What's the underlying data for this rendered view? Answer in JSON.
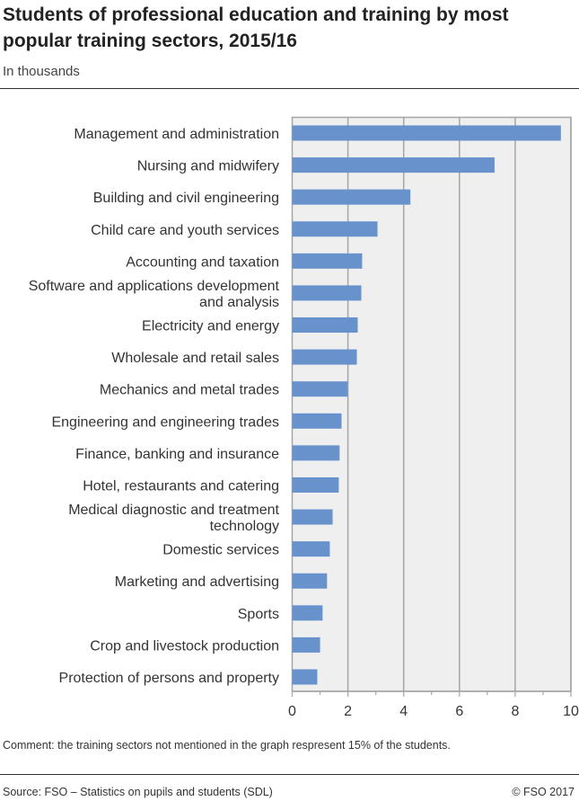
{
  "title": "Students of professional education and training by most popular training sectors, 2015/16",
  "subtitle": "In thousands",
  "comment": "Comment: the training sectors not mentioned in the graph respresent 15% of the students.",
  "source": "Source: FSO – Statistics on pupils and students (SDL)",
  "copyright": "© FSO 2017",
  "chart_data": {
    "type": "bar",
    "orientation": "horizontal",
    "categories": [
      "Management and administration",
      "Nursing and midwifery",
      "Building and civil engineering",
      "Child care and youth services",
      "Accounting and taxation",
      "Software and applications development and analysis",
      "Electricity and energy",
      "Wholesale and retail sales",
      "Mechanics and metal trades",
      "Engineering and engineering trades",
      "Finance, banking and insurance",
      "Hotel, restaurants and catering",
      "Medical diagnostic and treatment technology",
      "Domestic services",
      "Marketing and advertising",
      "Sports",
      "Crop and livestock production",
      "Protection of persons and property"
    ],
    "category_lines": [
      [
        "Management and administration"
      ],
      [
        "Nursing and midwifery"
      ],
      [
        "Building and civil engineering"
      ],
      [
        "Child care and youth services"
      ],
      [
        "Accounting and taxation"
      ],
      [
        "Software and applications development",
        "and analysis"
      ],
      [
        "Electricity and energy"
      ],
      [
        "Wholesale and retail sales"
      ],
      [
        "Mechanics and metal trades"
      ],
      [
        "Engineering and engineering trades"
      ],
      [
        "Finance, banking and insurance"
      ],
      [
        "Hotel, restaurants and catering"
      ],
      [
        "Medical diagnostic and treatment",
        "technology"
      ],
      [
        "Domestic services"
      ],
      [
        "Marketing and advertising"
      ],
      [
        "Sports"
      ],
      [
        "Crop and livestock production"
      ],
      [
        "Protection of persons and property"
      ]
    ],
    "values": [
      9.64,
      7.26,
      4.24,
      3.06,
      2.51,
      2.48,
      2.35,
      2.32,
      1.99,
      1.77,
      1.7,
      1.67,
      1.45,
      1.35,
      1.25,
      1.09,
      1.0,
      0.9
    ],
    "xlim": [
      0,
      10
    ],
    "xticks": [
      0,
      2,
      4,
      6,
      8,
      10
    ],
    "grid": true,
    "bar_color": "#6892cc",
    "plot_bg": "#efefef",
    "grid_color": "#a6a6a6"
  }
}
